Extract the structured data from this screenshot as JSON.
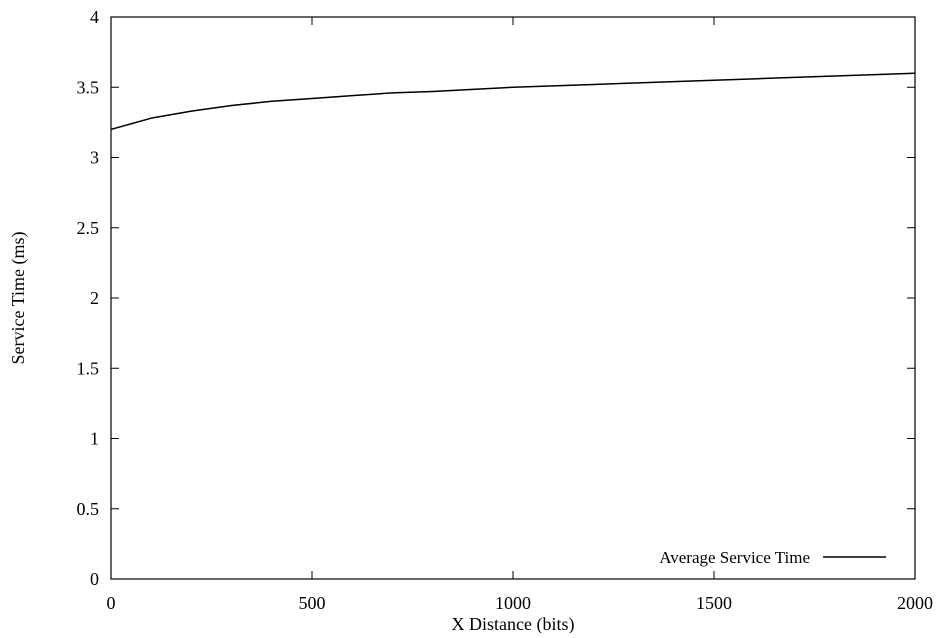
{
  "chart_data": {
    "type": "line",
    "title": "",
    "xlabel": "X Distance (bits)",
    "ylabel": "Service Time (ms)",
    "xlim": [
      0,
      2000
    ],
    "ylim": [
      0,
      4
    ],
    "x_ticks": [
      0,
      500,
      1000,
      1500,
      2000
    ],
    "y_ticks": [
      0,
      0.5,
      1,
      1.5,
      2,
      2.5,
      3,
      3.5,
      4
    ],
    "x_tick_labels": [
      "0",
      "500",
      "1000",
      "1500",
      "2000"
    ],
    "y_tick_labels": [
      "0",
      "0.5",
      "1",
      "1.5",
      "2",
      "2.5",
      "3",
      "3.5",
      "4"
    ],
    "grid": false,
    "legend_position": "bottom-right",
    "series": [
      {
        "name": "Average Service Time",
        "color": "#000000",
        "x": [
          0,
          100,
          200,
          300,
          400,
          500,
          600,
          700,
          800,
          900,
          1000,
          1100,
          1200,
          1300,
          1400,
          1500,
          1600,
          1700,
          1800,
          1900,
          2000
        ],
        "y": [
          3.2,
          3.28,
          3.33,
          3.37,
          3.4,
          3.42,
          3.44,
          3.46,
          3.47,
          3.485,
          3.5,
          3.51,
          3.52,
          3.53,
          3.54,
          3.55,
          3.56,
          3.57,
          3.58,
          3.59,
          3.6
        ]
      }
    ]
  }
}
